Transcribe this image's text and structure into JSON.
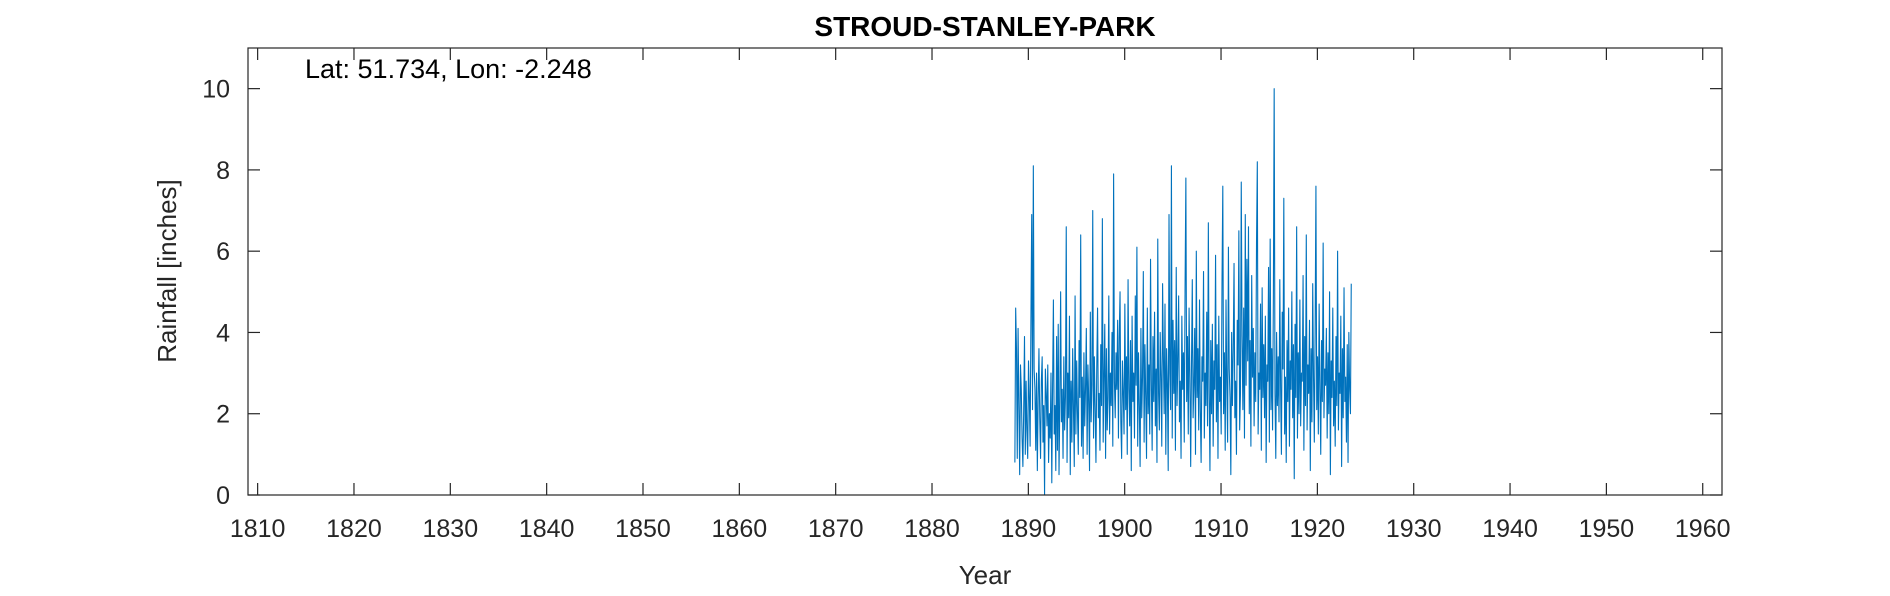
{
  "chart_data": {
    "type": "line",
    "title": "STROUD-STANLEY-PARK",
    "annotation": "Lat: 51.734, Lon: -2.248",
    "xlabel": "Year",
    "ylabel": "Rainfall [inches]",
    "xlim": [
      1809,
      1962
    ],
    "ylim": [
      0,
      11
    ],
    "xticks": [
      1810,
      1820,
      1830,
      1840,
      1850,
      1860,
      1870,
      1880,
      1890,
      1900,
      1910,
      1920,
      1930,
      1940,
      1950,
      1960
    ],
    "yticks": [
      0,
      2,
      4,
      6,
      8,
      10
    ],
    "grid": false,
    "series_color": "#0072BD",
    "series": [
      {
        "start_year": 1888.6,
        "step_years": 0.0833333,
        "values": [
          0.8,
          4.6,
          3.6,
          0.9,
          4.1,
          2.2,
          0.5,
          3.2,
          2.6,
          1.4,
          0.7,
          2.1,
          3.9,
          1.0,
          2.8,
          1.6,
          0.9,
          3.3,
          2.4,
          1.2,
          4.3,
          6.9,
          2.1,
          8.1,
          3.1,
          2.6,
          1.1,
          3.0,
          0.6,
          2.4,
          3.6,
          1.9,
          0.9,
          2.8,
          3.4,
          1.3,
          2.2,
          0.0,
          3.1,
          2.5,
          1.7,
          3.2,
          0.8,
          2.0,
          1.4,
          3.0,
          0.3,
          2.7,
          4.8,
          1.5,
          2.2,
          0.6,
          3.9,
          1.1,
          4.2,
          0.5,
          2.3,
          5.0,
          1.8,
          2.6,
          0.9,
          3.4,
          1.6,
          2.4,
          6.6,
          0.8,
          3.0,
          1.9,
          4.4,
          0.5,
          2.8,
          1.3,
          3.6,
          2.1,
          0.7,
          4.9,
          1.5,
          3.3,
          2.0,
          1.0,
          3.8,
          2.4,
          6.4,
          1.2,
          2.9,
          0.9,
          3.5,
          1.7,
          2.6,
          4.1,
          1.0,
          3.2,
          2.3,
          0.6,
          4.5,
          1.8,
          2.7,
          7.0,
          1.4,
          3.4,
          2.1,
          0.8,
          3.1,
          4.6,
          1.9,
          2.5,
          1.1,
          3.7,
          2.2,
          6.8,
          1.3,
          2.9,
          4.2,
          0.9,
          3.6,
          1.6,
          2.4,
          4.9,
          1.5,
          3.0,
          2.2,
          4.0,
          1.2,
          7.9,
          2.8,
          1.9,
          3.5,
          2.6,
          4.3,
          1.4,
          3.9,
          5.0,
          1.8,
          0.9,
          3.3,
          2.5,
          1.5,
          4.7,
          2.1,
          3.4,
          1.0,
          5.3,
          2.6,
          1.7,
          3.8,
          0.6,
          4.4,
          2.3,
          3.0,
          1.4,
          4.9,
          2.7,
          6.1,
          1.2,
          3.5,
          2.2,
          0.7,
          4.1,
          1.9,
          2.9,
          5.5,
          1.3,
          3.7,
          2.4,
          0.9,
          4.6,
          2.0,
          3.2,
          1.5,
          5.8,
          2.8,
          1.1,
          3.9,
          2.3,
          4.5,
          1.7,
          3.1,
          0.8,
          6.3,
          2.5,
          1.6,
          4.0,
          2.9,
          1.2,
          5.2,
          3.4,
          2.0,
          4.7,
          1.0,
          3.6,
          2.7,
          0.6,
          6.9,
          3.0,
          2.1,
          8.1,
          1.4,
          4.3,
          2.5,
          3.8,
          1.1,
          5.6,
          2.2,
          3.3,
          4.9,
          1.8,
          2.8,
          0.9,
          4.4,
          2.6,
          3.5,
          1.3,
          5.1,
          7.8,
          2.3,
          3.9,
          1.5,
          4.6,
          2.9,
          0.7,
          3.2,
          5.3,
          1.9,
          2.7,
          4.1,
          1.0,
          6.0,
          2.4,
          3.6,
          1.6,
          4.8,
          2.1,
          0.8,
          3.4,
          2.8,
          5.5,
          1.4,
          3.0,
          2.2,
          4.5,
          1.7,
          6.7,
          2.5,
          0.6,
          3.8,
          2.0,
          4.2,
          1.2,
          3.3,
          2.6,
          5.9,
          1.8,
          3.7,
          0.9,
          4.4,
          2.3,
          2.9,
          1.5,
          5.2,
          7.6,
          2.0,
          3.5,
          1.1,
          4.8,
          2.7,
          1.3,
          6.1,
          3.1,
          2.4,
          0.5,
          4.0,
          2.2,
          3.6,
          5.7,
          1.9,
          2.8,
          1.0,
          4.3,
          3.2,
          6.5,
          1.6,
          2.5,
          7.7,
          3.9,
          2.1,
          4.6,
          1.4,
          6.9,
          2.7,
          5.8,
          3.3,
          6.6,
          2.0,
          3.8,
          1.2,
          5.4,
          2.9,
          4.1,
          1.7,
          3.5,
          2.3,
          6.2,
          8.2,
          1.5,
          3.0,
          2.6,
          4.7,
          1.1,
          5.1,
          2.4,
          3.7,
          1.9,
          4.4,
          0.8,
          3.2,
          2.8,
          5.6,
          1.3,
          6.3,
          2.1,
          3.6,
          1.6,
          4.9,
          10.0,
          2.5,
          0.9,
          4.0,
          2.2,
          3.4,
          1.8,
          5.3,
          2.7,
          1.0,
          4.5,
          3.1,
          7.3,
          1.5,
          2.9,
          0.8,
          3.8,
          2.3,
          4.6,
          1.2,
          3.3,
          2.6,
          5.0,
          1.9,
          3.7,
          0.4,
          4.2,
          2.4,
          6.6,
          1.4,
          3.5,
          2.0,
          4.8,
          1.7,
          3.0,
          2.8,
          5.4,
          1.1,
          3.9,
          2.2,
          6.4,
          1.6,
          3.2,
          2.5,
          4.3,
          0.6,
          3.6,
          1.8,
          5.2,
          2.9,
          1.3,
          4.0,
          7.6,
          2.1,
          3.4,
          1.5,
          4.7,
          2.6,
          1.0,
          3.8,
          2.3,
          6.2,
          1.9,
          3.1,
          2.7,
          4.1,
          1.4,
          3.5,
          2.0,
          5.0,
          0.5,
          3.3,
          2.4,
          4.6,
          1.7,
          2.8,
          1.2,
          3.9,
          2.2,
          6.0,
          1.6,
          3.0,
          2.5,
          4.4,
          0.7,
          3.6,
          1.9,
          5.1,
          2.3,
          2.9,
          1.3,
          3.7,
          0.8,
          4.0,
          2.6,
          2.0,
          5.2
        ]
      }
    ]
  }
}
